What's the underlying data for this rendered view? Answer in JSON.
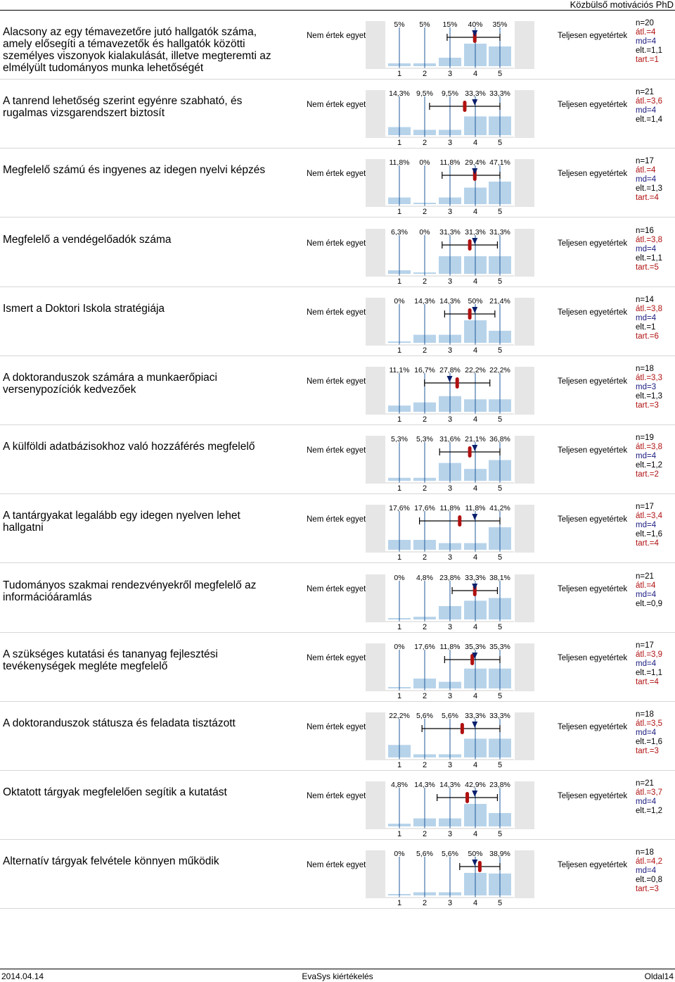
{
  "header": {
    "title": "Közbülső motivációs PhD"
  },
  "scale": {
    "left_label": "Nem értek egyet",
    "right_label": "Teljesen egyetértek",
    "ticks": [
      "1",
      "2",
      "3",
      "4",
      "5"
    ]
  },
  "colors": {
    "bar": "#b7d3ea",
    "bg_side": "#e6e6e6",
    "axis": "#1f5a9a",
    "mean": "#b01010",
    "median": "#0a1f6b"
  },
  "chart_data": [
    {
      "type": "bar",
      "question": "Alacsony az egy témavezetőre jutó hallgatók száma, amely elősegíti a témavezetők és hallgatók közötti személyes viszonyok kialakulását, illetve megteremti az elmélyült tudományos munka lehetőségét",
      "categories": [
        "1",
        "2",
        "3",
        "4",
        "5"
      ],
      "pct_labels": [
        "5%",
        "5%",
        "15%",
        "40%",
        "35%"
      ],
      "values": [
        5,
        5,
        15,
        40,
        35
      ],
      "mean": 4,
      "median": 4,
      "sd": 1.1,
      "stats": {
        "n": "n=20",
        "mean": "átl.=4",
        "md": "md=4",
        "sd": "elt.=1,1",
        "abst": "tart.=1"
      }
    },
    {
      "type": "bar",
      "question": "A tanrend lehetőség szerint egyénre szabható, és rugalmas vizsgarendszert biztosít",
      "categories": [
        "1",
        "2",
        "3",
        "4",
        "5"
      ],
      "pct_labels": [
        "14,3%",
        "9,5%",
        "9,5%",
        "33,3%",
        "33,3%"
      ],
      "values": [
        14.3,
        9.5,
        9.5,
        33.3,
        33.3
      ],
      "mean": 3.6,
      "median": 4,
      "sd": 1.4,
      "stats": {
        "n": "n=21",
        "mean": "átl.=3,6",
        "md": "md=4",
        "sd": "elt.=1,4",
        "abst": ""
      }
    },
    {
      "type": "bar",
      "question": "Megfelelő számú és ingyenes az idegen nyelvi képzés",
      "categories": [
        "1",
        "2",
        "3",
        "4",
        "5"
      ],
      "pct_labels": [
        "11,8%",
        "0%",
        "11,8%",
        "29,4%",
        "47,1%"
      ],
      "values": [
        11.8,
        0,
        11.8,
        29.4,
        47.1
      ],
      "mean": 4,
      "median": 4,
      "sd": 1.3,
      "stats": {
        "n": "n=17",
        "mean": "átl.=4",
        "md": "md=4",
        "sd": "elt.=1,3",
        "abst": "tart.=4"
      }
    },
    {
      "type": "bar",
      "question": "Megfelelő a vendégelőadók száma",
      "categories": [
        "1",
        "2",
        "3",
        "4",
        "5"
      ],
      "pct_labels": [
        "6,3%",
        "0%",
        "31,3%",
        "31,3%",
        "31,3%"
      ],
      "values": [
        6.3,
        0,
        31.3,
        31.3,
        31.3
      ],
      "mean": 3.8,
      "median": 4,
      "sd": 1.1,
      "stats": {
        "n": "n=16",
        "mean": "átl.=3,8",
        "md": "md=4",
        "sd": "elt.=1,1",
        "abst": "tart.=5"
      }
    },
    {
      "type": "bar",
      "question": "Ismert a Doktori Iskola stratégiája",
      "categories": [
        "1",
        "2",
        "3",
        "4",
        "5"
      ],
      "pct_labels": [
        "0%",
        "14,3%",
        "14,3%",
        "50%",
        "21,4%"
      ],
      "values": [
        0,
        14.3,
        14.3,
        50,
        21.4
      ],
      "mean": 3.8,
      "median": 4,
      "sd": 1,
      "stats": {
        "n": "n=14",
        "mean": "átl.=3,8",
        "md": "md=4",
        "sd": "elt.=1",
        "abst": "tart.=6"
      }
    },
    {
      "type": "bar",
      "question": "A doktoranduszok számára a munkaerőpiaci versenypozíciók kedvezőek",
      "categories": [
        "1",
        "2",
        "3",
        "4",
        "5"
      ],
      "pct_labels": [
        "11,1%",
        "16,7%",
        "27,8%",
        "22,2%",
        "22,2%"
      ],
      "values": [
        11.1,
        16.7,
        27.8,
        22.2,
        22.2
      ],
      "mean": 3.3,
      "median": 3,
      "sd": 1.3,
      "stats": {
        "n": "n=18",
        "mean": "átl.=3,3",
        "md": "md=3",
        "sd": "elt.=1,3",
        "abst": "tart.=3"
      }
    },
    {
      "type": "bar",
      "question": "A külföldi adatbázisokhoz való hozzáférés megfelelő",
      "categories": [
        "1",
        "2",
        "3",
        "4",
        "5"
      ],
      "pct_labels": [
        "5,3%",
        "5,3%",
        "31,6%",
        "21,1%",
        "36,8%"
      ],
      "values": [
        5.3,
        5.3,
        31.6,
        21.1,
        36.8
      ],
      "mean": 3.8,
      "median": 4,
      "sd": 1.2,
      "stats": {
        "n": "n=19",
        "mean": "átl.=3,8",
        "md": "md=4",
        "sd": "elt.=1,2",
        "abst": "tart.=2"
      }
    },
    {
      "type": "bar",
      "question": "A tantárgyakat legalább egy idegen nyelven lehet hallgatni",
      "categories": [
        "1",
        "2",
        "3",
        "4",
        "5"
      ],
      "pct_labels": [
        "17,6%",
        "17,6%",
        "11,8%",
        "11,8%",
        "41,2%"
      ],
      "values": [
        17.6,
        17.6,
        11.8,
        11.8,
        41.2
      ],
      "mean": 3.4,
      "median": 4,
      "sd": 1.6,
      "stats": {
        "n": "n=17",
        "mean": "átl.=3,4",
        "md": "md=4",
        "sd": "elt.=1,6",
        "abst": "tart.=4"
      }
    },
    {
      "type": "bar",
      "question": "Tudományos szakmai rendezvényekről megfelelő az információáramlás",
      "categories": [
        "1",
        "2",
        "3",
        "4",
        "5"
      ],
      "pct_labels": [
        "0%",
        "4,8%",
        "23,8%",
        "33,3%",
        "38,1%"
      ],
      "values": [
        0,
        4.8,
        23.8,
        33.3,
        38.1
      ],
      "mean": 4,
      "median": 4,
      "sd": 0.9,
      "stats": {
        "n": "n=21",
        "mean": "átl.=4",
        "md": "md=4",
        "sd": "elt.=0,9",
        "abst": ""
      }
    },
    {
      "type": "bar",
      "question": "A szükséges kutatási és tananyag fejlesztési tevékenységek megléte megfelelő",
      "categories": [
        "1",
        "2",
        "3",
        "4",
        "5"
      ],
      "pct_labels": [
        "0%",
        "17,6%",
        "11,8%",
        "35,3%",
        "35,3%"
      ],
      "values": [
        0,
        17.6,
        11.8,
        35.3,
        35.3
      ],
      "mean": 3.9,
      "median": 4,
      "sd": 1.1,
      "stats": {
        "n": "n=17",
        "mean": "átl.=3,9",
        "md": "md=4",
        "sd": "elt.=1,1",
        "abst": "tart.=4"
      }
    },
    {
      "type": "bar",
      "question": "A doktoranduszok státusza és feladata tisztázott",
      "categories": [
        "1",
        "2",
        "3",
        "4",
        "5"
      ],
      "pct_labels": [
        "22,2%",
        "5,6%",
        "5,6%",
        "33,3%",
        "33,3%"
      ],
      "values": [
        22.2,
        5.6,
        5.6,
        33.3,
        33.3
      ],
      "mean": 3.5,
      "median": 4,
      "sd": 1.6,
      "stats": {
        "n": "n=18",
        "mean": "átl.=3,5",
        "md": "md=4",
        "sd": "elt.=1,6",
        "abst": "tart.=3"
      }
    },
    {
      "type": "bar",
      "question": "Oktatott tárgyak megfelelően segítik a kutatást",
      "categories": [
        "1",
        "2",
        "3",
        "4",
        "5"
      ],
      "pct_labels": [
        "4,8%",
        "14,3%",
        "14,3%",
        "42,9%",
        "23,8%"
      ],
      "values": [
        4.8,
        14.3,
        14.3,
        42.9,
        23.8
      ],
      "mean": 3.7,
      "median": 4,
      "sd": 1.2,
      "stats": {
        "n": "n=21",
        "mean": "átl.=3,7",
        "md": "md=4",
        "sd": "elt.=1,2",
        "abst": ""
      }
    },
    {
      "type": "bar",
      "question": "Alternatív tárgyak felvétele könnyen működik",
      "categories": [
        "1",
        "2",
        "3",
        "4",
        "5"
      ],
      "pct_labels": [
        "0%",
        "5,6%",
        "5,6%",
        "50%",
        "38,9%"
      ],
      "values": [
        0,
        5.6,
        5.6,
        50,
        38.9
      ],
      "mean": 4.2,
      "median": 4,
      "sd": 0.8,
      "stats": {
        "n": "n=18",
        "mean": "átl.=4,2",
        "md": "md=4",
        "sd": "elt.=0,8",
        "abst": "tart.=3"
      }
    }
  ],
  "footer": {
    "date": "2014.04.14",
    "center": "EvaSys kiértékelés",
    "page": "Oldal14"
  }
}
